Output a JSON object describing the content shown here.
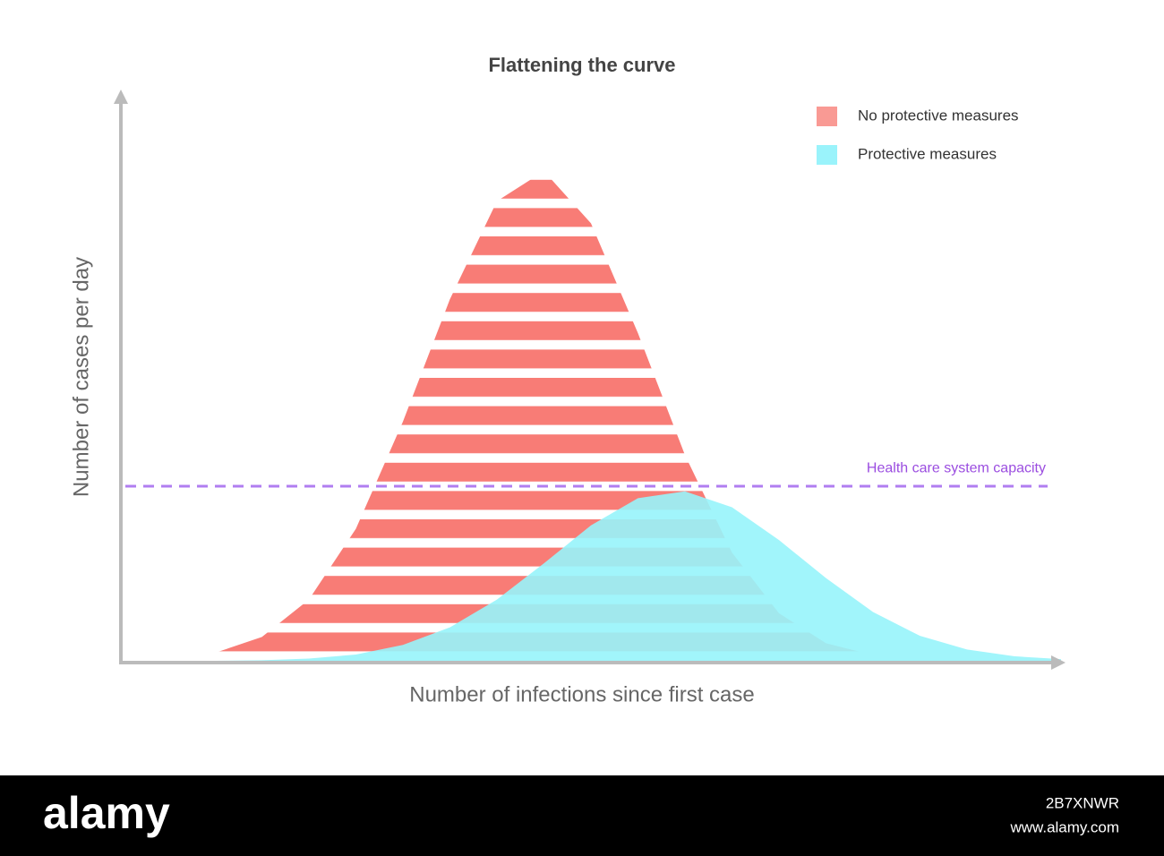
{
  "chart_data": {
    "type": "area",
    "title": "Flattening the curve",
    "x_label": "Number of infections since first case",
    "y_label": "Number of cases per day",
    "x": [
      0,
      5,
      10,
      15,
      20,
      25,
      30,
      35,
      40,
      45,
      50,
      55,
      60,
      65,
      70,
      75,
      80,
      85,
      90,
      95,
      100
    ],
    "xlim": [
      0,
      100
    ],
    "ylim": [
      0,
      100
    ],
    "legend_position": "upper right",
    "series": [
      {
        "name": "No protective measures",
        "color": "#f87c76",
        "legend_color": "#f99a94",
        "fill_style": "striped",
        "values": [
          0.1,
          0.4,
          1.4,
          4.2,
          10.8,
          23.3,
          42.2,
          63.8,
          81.1,
          86.4,
          77.2,
          57.8,
          36.3,
          19.1,
          8.4,
          3.1,
          1.0,
          0.3,
          0.1,
          0,
          0
        ]
      },
      {
        "name": "Protective measures",
        "color": "#97f4fb",
        "legend_color": "#9af3fb",
        "fill_style": "solid",
        "values": [
          0,
          0,
          0,
          0.1,
          0.4,
          1.1,
          2.8,
          5.9,
          10.8,
          17.2,
          23.9,
          28.7,
          29.9,
          27.1,
          21.3,
          14.6,
          8.6,
          4.4,
          2.0,
          0.8,
          0.3
        ]
      }
    ],
    "reference_line": {
      "value": 30.8,
      "label": "Health care system capacity",
      "color": "#b07ef0",
      "label_color": "#9b4de0"
    }
  },
  "footer": {
    "brand": "alamy",
    "image_id": "2B7XNWR",
    "url": "www.alamy.com"
  }
}
